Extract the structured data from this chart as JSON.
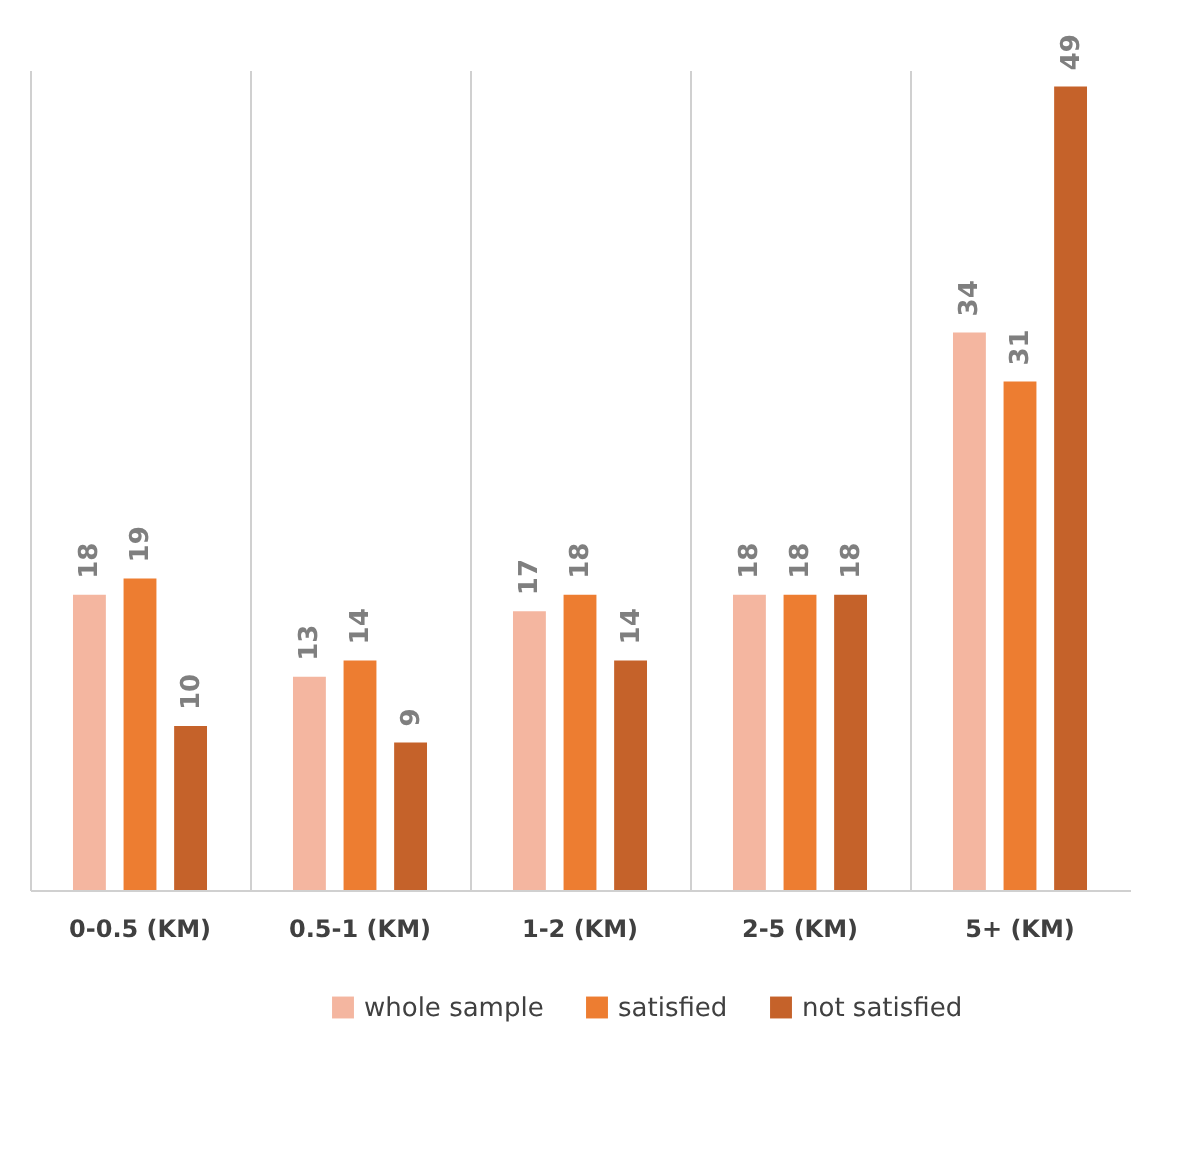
{
  "chart_data": {
    "type": "bar",
    "categories": [
      "0-0.5 (KM)",
      "0.5-1 (KM)",
      "1-2 (KM)",
      "2-5 (KM)",
      "5+ (KM)"
    ],
    "series": [
      {
        "name": "whole sample",
        "color": "#f4b6a0",
        "values": [
          18,
          13,
          17,
          18,
          34
        ]
      },
      {
        "name": "satisfied",
        "color": "#ed7d31",
        "values": [
          19,
          14,
          18,
          18,
          31
        ]
      },
      {
        "name": "not satisfied",
        "color": "#c5622a",
        "values": [
          10,
          9,
          14,
          18,
          49
        ]
      }
    ],
    "data_labels": true,
    "grid": "x",
    "legend": "bottom"
  }
}
